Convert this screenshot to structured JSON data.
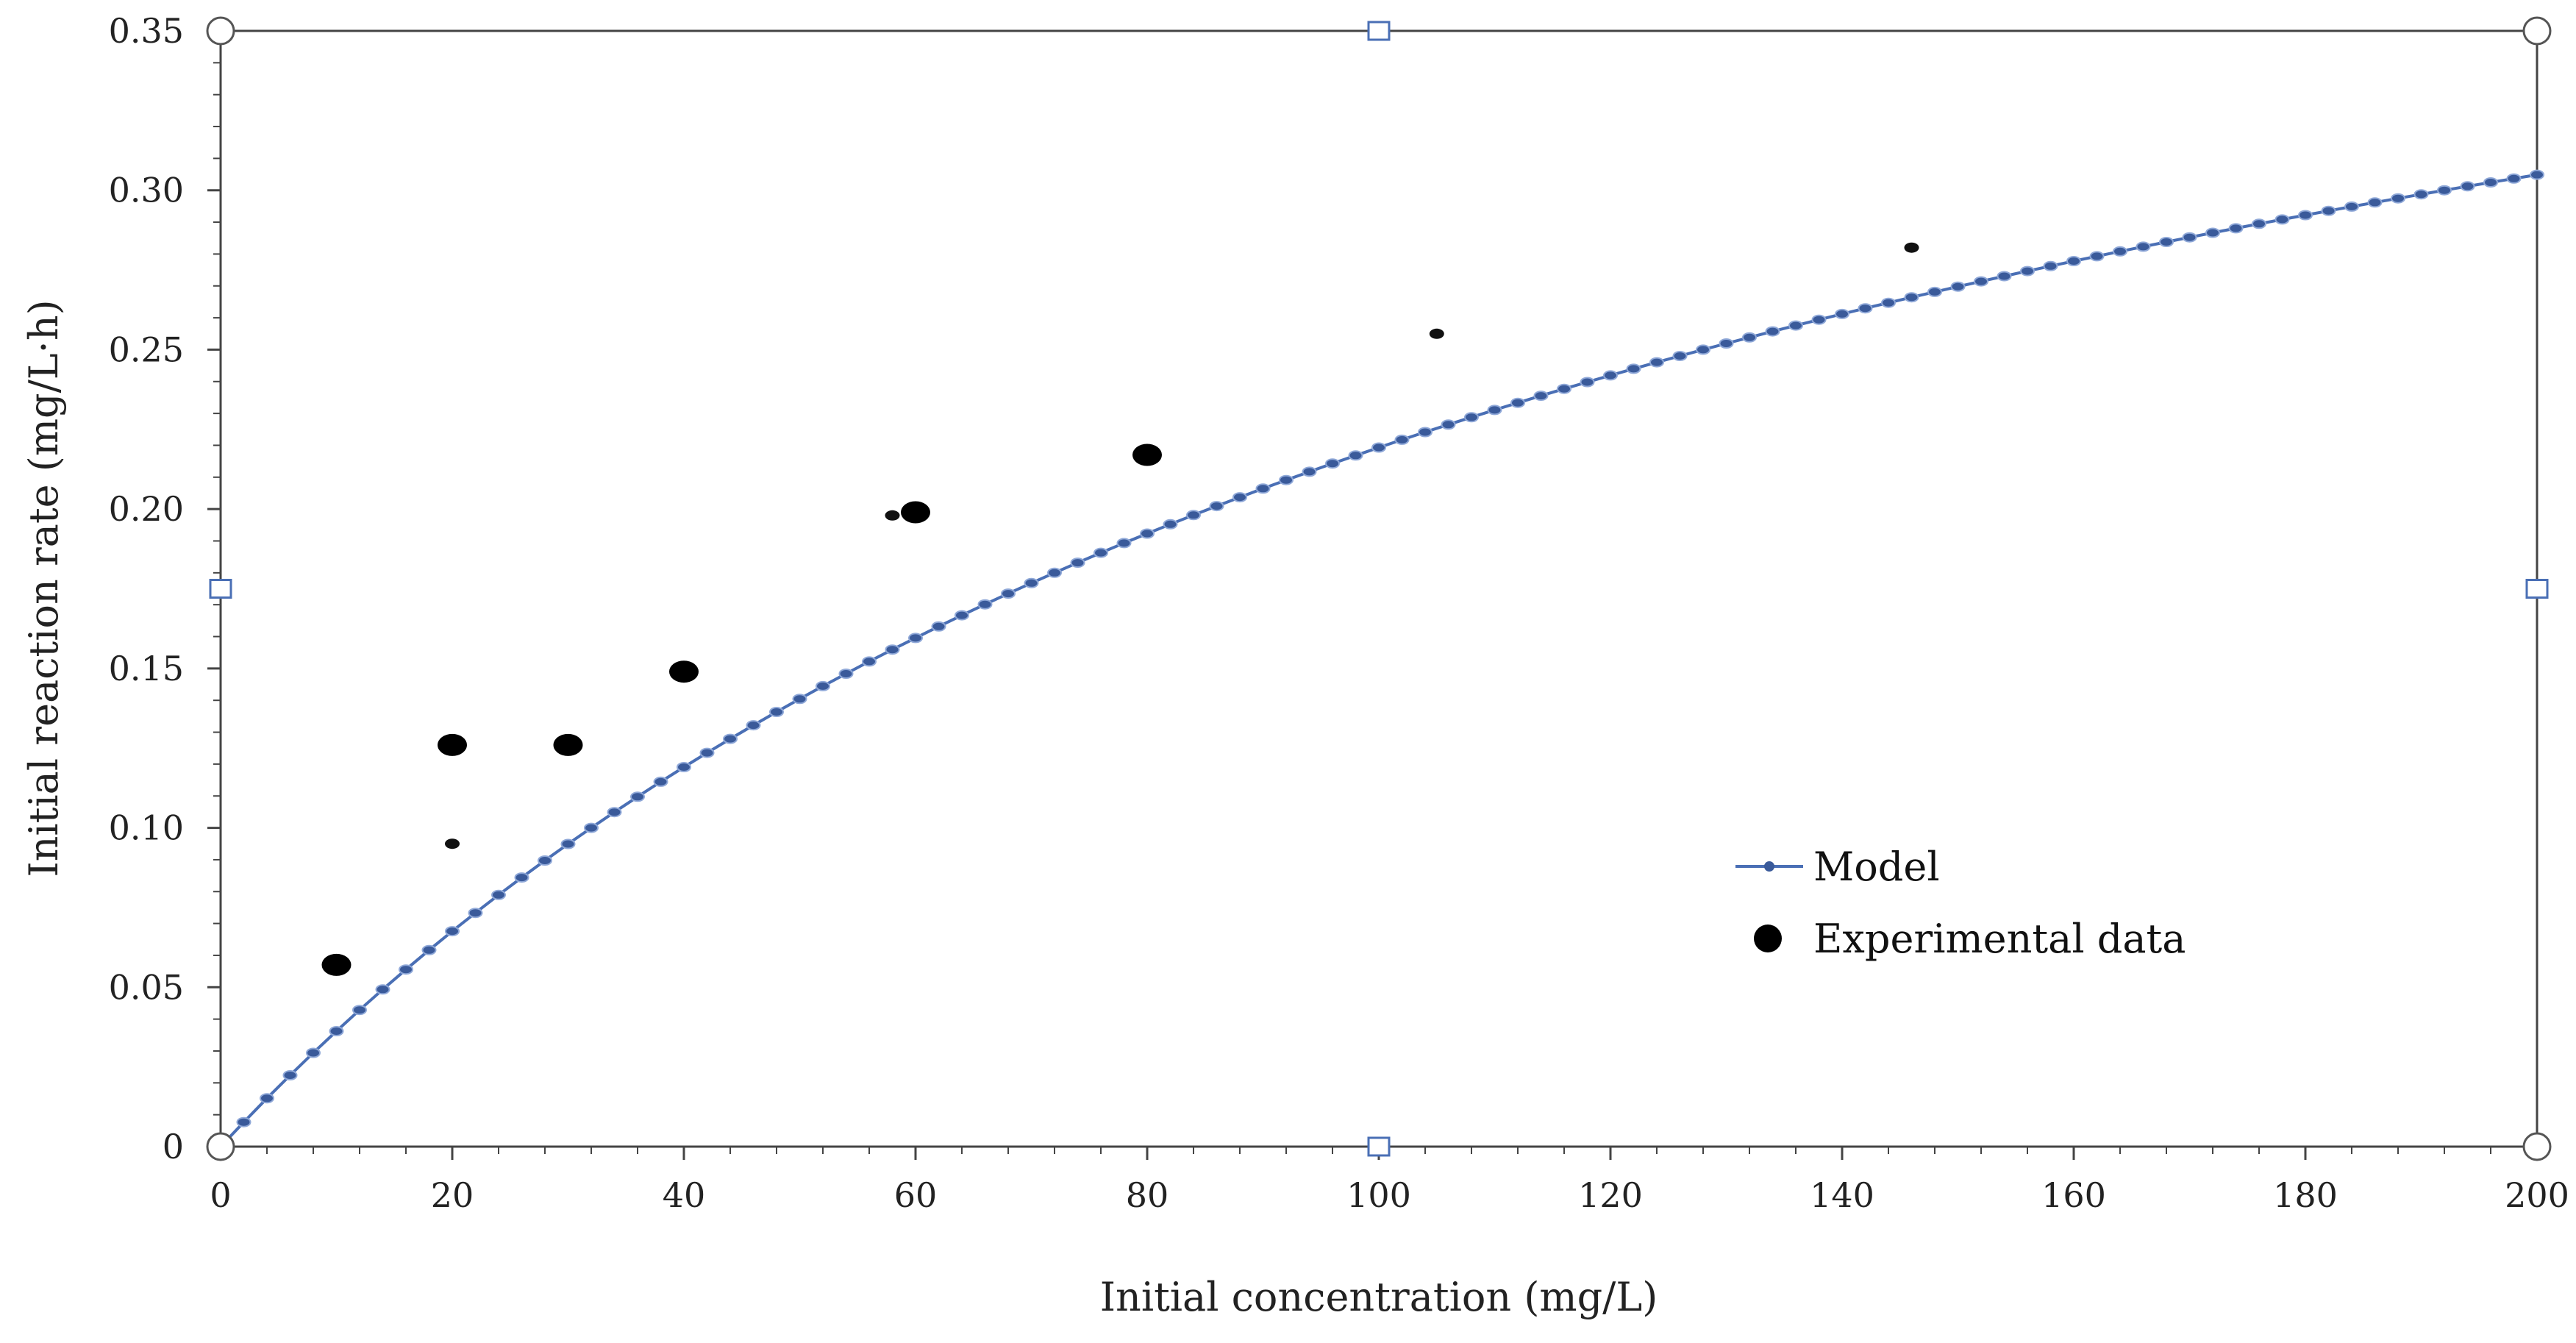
{
  "chart_data": {
    "type": "scatter",
    "title": "",
    "xlabel": "Initial concentration (mg/L)",
    "ylabel": "Initial reaction rate (mg/L·h)",
    "xlim": [
      0,
      200
    ],
    "ylim": [
      0,
      0.35
    ],
    "xticks": [
      0,
      20,
      40,
      60,
      80,
      100,
      120,
      140,
      160,
      180,
      200
    ],
    "xtick_labels": [
      "0",
      "20",
      "40",
      "60",
      "80",
      "100",
      "120",
      "140",
      "160",
      "180",
      "200"
    ],
    "yticks": [
      0,
      0.05,
      0.1,
      0.15,
      0.2,
      0.25,
      0.3,
      0.35
    ],
    "ytick_labels": [
      "0",
      "0.05",
      "0.10",
      "0.15",
      "0.20",
      "0.25",
      "0.30",
      "0.35"
    ],
    "grid": false,
    "legend_position": "center-right",
    "series": [
      {
        "name": "Model",
        "kind": "line-with-markers",
        "color": "#4a6fb5",
        "marker_color": "#3a5a9a",
        "model": "michaelis-menten",
        "params": {
          "vmax": 0.5,
          "km": 128
        },
        "x_start": 0,
        "x_end": 200,
        "x_step": 2
      },
      {
        "name": "Experimental data",
        "kind": "scatter",
        "color": "#000000",
        "x": [
          10,
          20,
          30,
          40,
          60,
          80
        ],
        "y": [
          0.057,
          0.126,
          0.126,
          0.149,
          0.199,
          0.217
        ]
      }
    ],
    "extra_points": [
      {
        "x": 20,
        "y": 0.095
      },
      {
        "x": 58,
        "y": 0.198
      },
      {
        "x": 105,
        "y": 0.255
      },
      {
        "x": 146,
        "y": 0.282
      }
    ]
  }
}
